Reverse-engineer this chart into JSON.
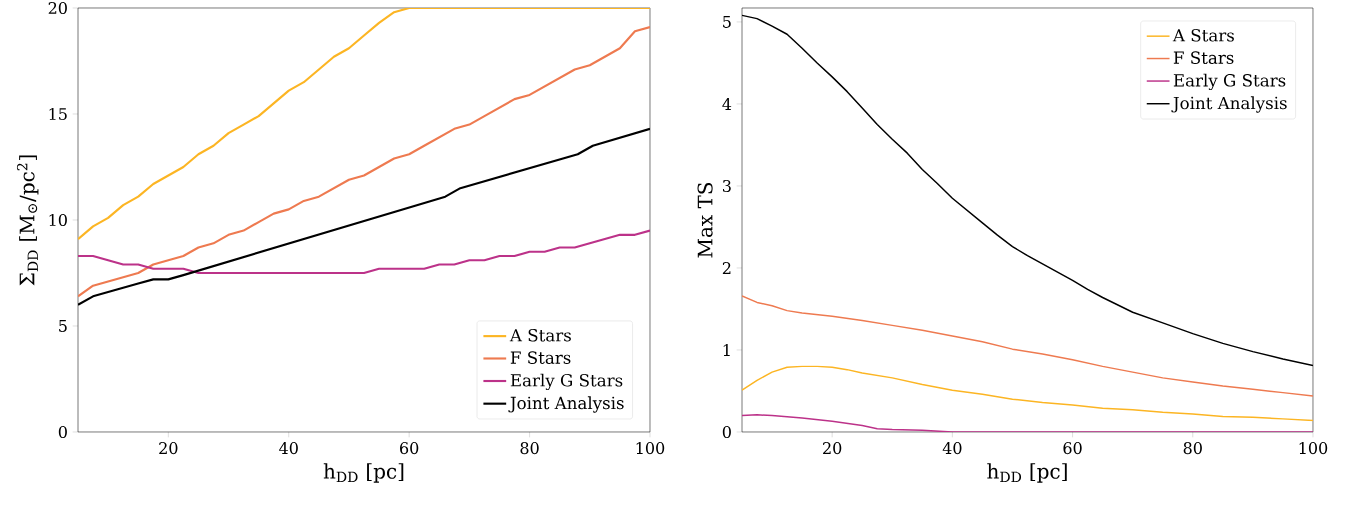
{
  "chart_data": [
    {
      "type": "line",
      "xlabel": "h$_{DD}$ [pc]",
      "ylabel": "Σ$_{DD}$ [M$_{⊙}$/pc$^{2}$]",
      "xlim": [
        5,
        100
      ],
      "xticks": [
        20,
        40,
        60,
        80,
        100
      ],
      "ylim": [
        0,
        20
      ],
      "yticks": [
        0,
        5,
        10,
        15,
        20
      ],
      "legend": "bottom right",
      "series": [
        {
          "name": "A Stars",
          "color": "#fcb523",
          "x": [
            5,
            7.5,
            10,
            12.5,
            15,
            17.5,
            20,
            22.5,
            25,
            27.5,
            30,
            32.5,
            35,
            37.5,
            40,
            42.5,
            45,
            47.5,
            50,
            52.5,
            55,
            57.5,
            60,
            100
          ],
          "values": [
            9.1,
            9.7,
            10.1,
            10.7,
            11.1,
            11.7,
            12.1,
            12.5,
            13.1,
            13.5,
            14.1,
            14.5,
            14.9,
            15.5,
            16.1,
            16.5,
            17.1,
            17.7,
            18.1,
            18.7,
            19.3,
            19.8,
            20,
            20
          ]
        },
        {
          "name": "F Stars",
          "color": "#ee7a50",
          "x": [
            5,
            7.5,
            10,
            12.5,
            15,
            17.5,
            20,
            22.5,
            25,
            27.5,
            30,
            32.5,
            35,
            37.5,
            40,
            42.5,
            45,
            47.5,
            50,
            52.5,
            55,
            57.5,
            60,
            62.5,
            65,
            67.5,
            70,
            72.5,
            75,
            77.5,
            80,
            82.5,
            85,
            87.5,
            90,
            92.5,
            95,
            97.5,
            100
          ],
          "values": [
            6.4,
            6.9,
            7.1,
            7.3,
            7.5,
            7.9,
            8.1,
            8.3,
            8.7,
            8.9,
            9.3,
            9.5,
            9.9,
            10.3,
            10.5,
            10.9,
            11.1,
            11.5,
            11.9,
            12.1,
            12.5,
            12.9,
            13.1,
            13.5,
            13.9,
            14.3,
            14.5,
            14.9,
            15.3,
            15.7,
            15.9,
            16.3,
            16.7,
            17.1,
            17.3,
            17.7,
            18.1,
            18.9,
            19.1
          ]
        },
        {
          "name": "Early G Stars",
          "color": "#bc3289",
          "x": [
            5,
            7.5,
            10,
            12.5,
            15,
            17.5,
            20,
            22.5,
            25,
            52.5,
            55,
            62.5,
            65,
            67.5,
            70,
            72.5,
            75,
            77.5,
            80,
            82.5,
            85,
            87.5,
            90,
            92.5,
            95,
            97.5,
            100
          ],
          "values": [
            8.3,
            8.3,
            8.1,
            7.9,
            7.9,
            7.7,
            7.7,
            7.7,
            7.5,
            7.5,
            7.7,
            7.7,
            7.9,
            7.9,
            8.1,
            8.1,
            8.3,
            8.3,
            8.5,
            8.5,
            8.7,
            8.7,
            8.9,
            9.1,
            9.3,
            9.3,
            9.5
          ]
        },
        {
          "name": "Joint Analysis",
          "color": "#000000",
          "x": [
            5,
            7.5,
            10,
            12.5,
            15,
            17.5,
            20,
            22.5,
            66,
            68.5,
            88,
            90.5,
            100
          ],
          "values": [
            6.0,
            6.4,
            6.6,
            6.8,
            7.0,
            7.2,
            7.2,
            7.4,
            11.1,
            11.5,
            13.1,
            13.5,
            14.3
          ]
        }
      ]
    },
    {
      "type": "line",
      "xlabel": "h$_{DD}$ [pc]",
      "ylabel": "Max TS",
      "xlim": [
        5,
        100
      ],
      "xticks": [
        20,
        40,
        60,
        80,
        100
      ],
      "ylim": [
        0,
        5.17
      ],
      "yticks": [
        0,
        1,
        2,
        3,
        4,
        5
      ],
      "legend": "top right",
      "series": [
        {
          "name": "A Stars",
          "color": "#fcb523",
          "x": [
            5,
            7.5,
            10,
            12.5,
            15,
            17.5,
            20,
            22.5,
            25,
            30,
            35,
            40,
            45,
            50,
            55,
            60,
            65,
            70,
            75,
            80,
            85,
            90,
            95,
            100
          ],
          "values": [
            0.51,
            0.63,
            0.73,
            0.79,
            0.8,
            0.8,
            0.79,
            0.76,
            0.72,
            0.66,
            0.58,
            0.51,
            0.46,
            0.4,
            0.36,
            0.33,
            0.29,
            0.27,
            0.24,
            0.22,
            0.19,
            0.18,
            0.16,
            0.14
          ]
        },
        {
          "name": "F Stars",
          "color": "#ee7a50",
          "x": [
            5,
            7.5,
            10,
            12.5,
            15,
            20,
            25,
            30,
            35,
            40,
            45,
            50,
            55,
            60,
            65,
            70,
            75,
            80,
            85,
            90,
            95,
            100
          ],
          "values": [
            1.66,
            1.58,
            1.54,
            1.48,
            1.45,
            1.41,
            1.36,
            1.3,
            1.24,
            1.17,
            1.1,
            1.01,
            0.95,
            0.88,
            0.8,
            0.73,
            0.66,
            0.61,
            0.56,
            0.52,
            0.48,
            0.44
          ]
        },
        {
          "name": "Early G Stars",
          "color": "#bc3289",
          "x": [
            5,
            7.5,
            10,
            15,
            20,
            25,
            27.5,
            30,
            35,
            40,
            60,
            80,
            100
          ],
          "values": [
            0.2,
            0.21,
            0.2,
            0.17,
            0.13,
            0.08,
            0.04,
            0.03,
            0.02,
            0,
            0,
            0,
            0
          ]
        },
        {
          "name": "Joint Analysis",
          "color": "#000000",
          "x": [
            5,
            7.5,
            10,
            12.5,
            15,
            17.5,
            20,
            22.5,
            25,
            27.5,
            30,
            32.5,
            35,
            37.5,
            40,
            42.5,
            45,
            47.5,
            50,
            52.5,
            55,
            57.5,
            60,
            62.5,
            65,
            67.5,
            70,
            75,
            80,
            85,
            90,
            95,
            100
          ],
          "values": [
            5.08,
            5.04,
            4.95,
            4.85,
            4.68,
            4.5,
            4.33,
            4.15,
            3.95,
            3.75,
            3.57,
            3.4,
            3.2,
            3.03,
            2.85,
            2.7,
            2.55,
            2.4,
            2.26,
            2.15,
            2.05,
            1.95,
            1.85,
            1.74,
            1.64,
            1.55,
            1.46,
            1.33,
            1.2,
            1.08,
            0.98,
            0.89,
            0.81
          ]
        }
      ]
    }
  ]
}
